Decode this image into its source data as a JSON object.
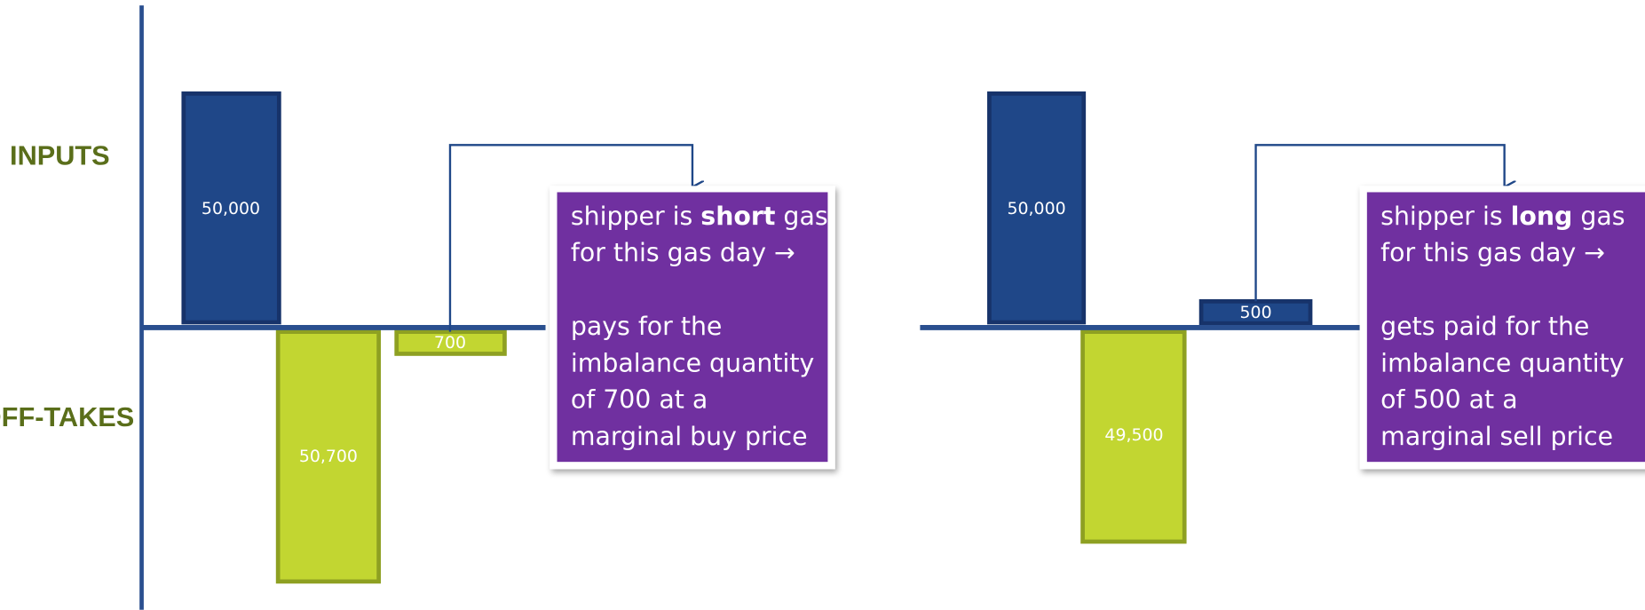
{
  "labels": {
    "inputs": "INPUTS",
    "offtakes": "OFF-TAKES"
  },
  "panels": [
    {
      "inputs_bar": "50,000",
      "offtakes_bar": "50,700",
      "imbalance_bar": "700",
      "box": {
        "line1": [
          "shipper is ",
          "short",
          " gas"
        ],
        "line2": "for this gas day →",
        "lines": [
          "pays for the",
          "imbalance quantity",
          "of 700 at a",
          "marginal buy price"
        ]
      }
    },
    {
      "inputs_bar": "50,000",
      "offtakes_bar": "49,500",
      "imbalance_bar": "500",
      "box": {
        "line1": [
          "shipper is ",
          "long",
          " gas"
        ],
        "line2": "for this gas day →",
        "lines": [
          "gets paid for the",
          "imbalance quantity",
          "of 500 at a",
          "marginal sell price"
        ]
      }
    }
  ]
}
